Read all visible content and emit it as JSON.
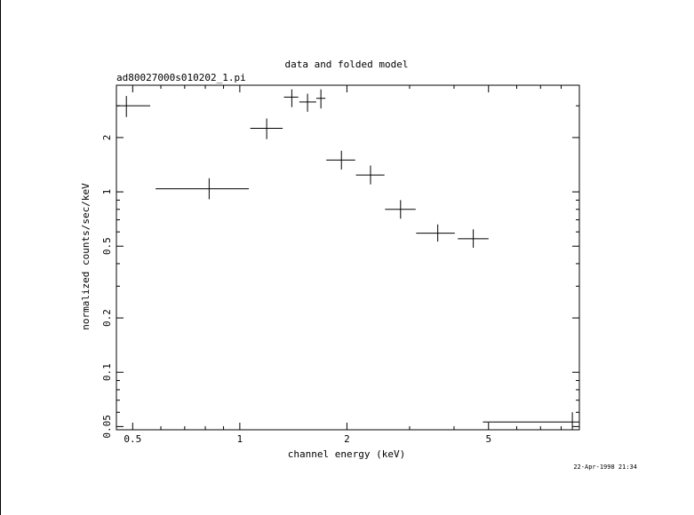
{
  "chart_data": {
    "type": "scatter",
    "title": "data and folded model",
    "subtitle": "ad80027000s010202_1.pi",
    "xlabel": "channel energy (keV)",
    "ylabel": "normalized counts/sec/keV",
    "xscale": "log",
    "yscale": "log",
    "xlim": [
      0.45,
      9.0
    ],
    "ylim": [
      0.048,
      3.9
    ],
    "x_ticks": [
      {
        "value": 0.5,
        "label": "0.5"
      },
      {
        "value": 1,
        "label": "1"
      },
      {
        "value": 2,
        "label": "2"
      },
      {
        "value": 5,
        "label": "5"
      }
    ],
    "y_ticks": [
      {
        "value": 0.05,
        "label": "0.05"
      },
      {
        "value": 0.1,
        "label": "0.1"
      },
      {
        "value": 0.2,
        "label": "0.2"
      },
      {
        "value": 0.5,
        "label": "0.5"
      },
      {
        "value": 1,
        "label": "1"
      },
      {
        "value": 2,
        "label": "2"
      }
    ],
    "points": [
      {
        "x": 0.48,
        "xlo": 0.45,
        "xhi": 0.56,
        "y": 3.0,
        "ylo": 2.6,
        "yhi": 3.4
      },
      {
        "x": 0.82,
        "xlo": 0.58,
        "xhi": 1.06,
        "y": 1.04,
        "ylo": 0.91,
        "yhi": 1.19
      },
      {
        "x": 1.19,
        "xlo": 1.07,
        "xhi": 1.32,
        "y": 2.25,
        "ylo": 1.96,
        "yhi": 2.55
      },
      {
        "x": 1.4,
        "xlo": 1.33,
        "xhi": 1.46,
        "y": 3.35,
        "ylo": 2.95,
        "yhi": 3.7
      },
      {
        "x": 1.55,
        "xlo": 1.47,
        "xhi": 1.64,
        "y": 3.15,
        "ylo": 2.78,
        "yhi": 3.5
      },
      {
        "x": 1.69,
        "xlo": 1.64,
        "xhi": 1.74,
        "y": 3.3,
        "ylo": 2.9,
        "yhi": 3.7
      },
      {
        "x": 1.93,
        "xlo": 1.75,
        "xhi": 2.11,
        "y": 1.5,
        "ylo": 1.33,
        "yhi": 1.69
      },
      {
        "x": 2.33,
        "xlo": 2.12,
        "xhi": 2.55,
        "y": 1.24,
        "ylo": 1.1,
        "yhi": 1.4
      },
      {
        "x": 2.83,
        "xlo": 2.56,
        "xhi": 3.12,
        "y": 0.8,
        "ylo": 0.71,
        "yhi": 0.9
      },
      {
        "x": 3.6,
        "xlo": 3.13,
        "xhi": 4.02,
        "y": 0.59,
        "ylo": 0.53,
        "yhi": 0.66
      },
      {
        "x": 4.53,
        "xlo": 4.1,
        "xhi": 5.0,
        "y": 0.55,
        "ylo": 0.49,
        "yhi": 0.62
      },
      {
        "x": 8.6,
        "xlo": 4.82,
        "xhi": 9.0,
        "y": 0.053,
        "ylo": 0.047,
        "yhi": 0.06
      }
    ]
  },
  "footer": {
    "timestamp": "22-Apr-1998 21:34"
  }
}
